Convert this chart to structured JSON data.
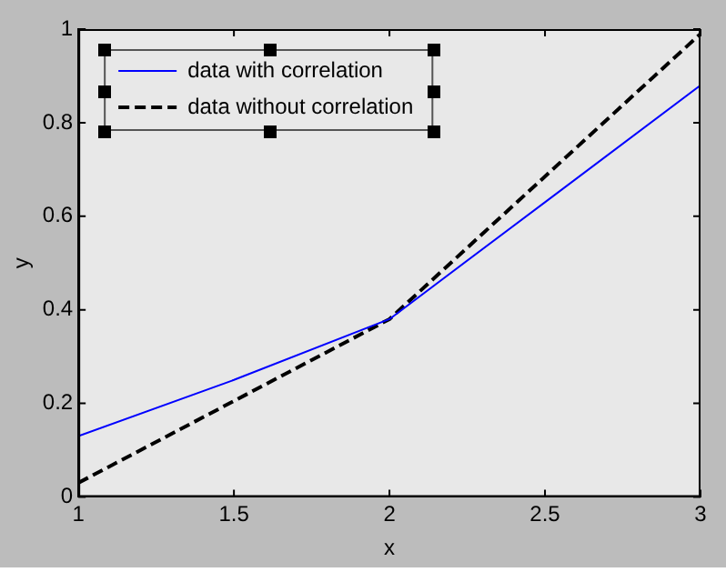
{
  "chart_data": {
    "type": "line",
    "xlabel": "x",
    "ylabel": "y",
    "xlim": [
      1,
      3
    ],
    "xticks": [
      1,
      1.5,
      2,
      2.5,
      3
    ],
    "ylim": [
      0,
      1
    ],
    "yticks": [
      0,
      0.2,
      0.4,
      0.6,
      0.8,
      1
    ],
    "grid": false,
    "legend": "top left",
    "marker": "none",
    "series": [
      {
        "name": "data with correlation",
        "color": "#0000ff",
        "x": [
          1,
          1.5,
          2,
          2.5,
          3
        ],
        "values": [
          0.13,
          0.25,
          0.38,
          0.63,
          0.88
        ],
        "line_style": "solid"
      },
      {
        "name": "data without correlation",
        "color": "#000000",
        "x": [
          1,
          2,
          3
        ],
        "values": [
          0.03,
          0.38,
          0.99
        ],
        "line_style": "dashed"
      }
    ]
  }
}
